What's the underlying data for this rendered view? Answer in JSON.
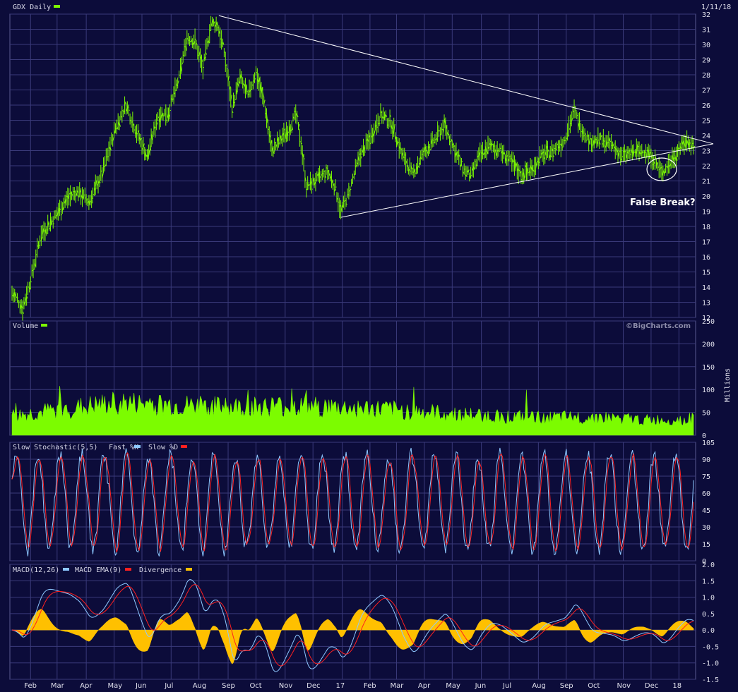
{
  "colors": {
    "background": "#0c0c3a",
    "grid": "#3a3a7a",
    "border": "#5a5a90",
    "price": "#7cfc00",
    "volume": "#7cfc00",
    "stoch_fast": "#8ec8ff",
    "stoch_slow": "#ff2020",
    "macd": "#8ec8ff",
    "macd_ema": "#ff2020",
    "divergence": "#ffc000",
    "trendline": "#ffffff"
  },
  "header": {
    "symbol_label": "GDX Daily",
    "date": "1/11/18",
    "credit": "©BigCharts.com"
  },
  "annotation": {
    "text": "False Break?"
  },
  "chart_data": [
    {
      "type": "bar",
      "name": "price",
      "title": "GDX Daily",
      "ylim": [
        12,
        32
      ],
      "yticks": [
        32,
        31,
        30,
        29,
        28,
        27,
        26,
        25,
        24,
        23,
        22,
        21,
        20,
        19,
        18,
        17,
        16,
        15,
        14,
        13,
        12
      ],
      "x_labels": [
        "Feb",
        "Mar",
        "Apr",
        "May",
        "Jun",
        "Jul",
        "Aug",
        "Sep",
        "Oct",
        "Nov",
        "Dec",
        "17",
        "Feb",
        "Mar",
        "Apr",
        "May",
        "Jun",
        "Jul",
        "Aug",
        "Sep",
        "Oct",
        "Nov",
        "Dec",
        "18"
      ],
      "anchors": [
        {
          "t": 0,
          "v": 13.6
        },
        {
          "t": 4,
          "v": 13.2
        },
        {
          "t": 8,
          "v": 12.6
        },
        {
          "t": 14,
          "v": 14.5
        },
        {
          "t": 22,
          "v": 17.5
        },
        {
          "t": 32,
          "v": 18.6
        },
        {
          "t": 42,
          "v": 19.9
        },
        {
          "t": 50,
          "v": 20.3
        },
        {
          "t": 58,
          "v": 19.6
        },
        {
          "t": 68,
          "v": 21.5
        },
        {
          "t": 78,
          "v": 24.5
        },
        {
          "t": 86,
          "v": 26.0
        },
        {
          "t": 94,
          "v": 24.2
        },
        {
          "t": 102,
          "v": 22.6
        },
        {
          "t": 110,
          "v": 25.3
        },
        {
          "t": 118,
          "v": 25.5
        },
        {
          "t": 126,
          "v": 27.8
        },
        {
          "t": 132,
          "v": 30.5
        },
        {
          "t": 138,
          "v": 30.2
        },
        {
          "t": 144,
          "v": 28.4
        },
        {
          "t": 150,
          "v": 31.4
        },
        {
          "t": 155,
          "v": 31.3
        },
        {
          "t": 160,
          "v": 29.5
        },
        {
          "t": 166,
          "v": 25.8
        },
        {
          "t": 172,
          "v": 27.8
        },
        {
          "t": 178,
          "v": 26.6
        },
        {
          "t": 184,
          "v": 28.2
        },
        {
          "t": 190,
          "v": 26.2
        },
        {
          "t": 196,
          "v": 23.0
        },
        {
          "t": 204,
          "v": 23.9
        },
        {
          "t": 210,
          "v": 24.6
        },
        {
          "t": 214,
          "v": 25.4
        },
        {
          "t": 218,
          "v": 23.5
        },
        {
          "t": 222,
          "v": 20.6
        },
        {
          "t": 230,
          "v": 21.1
        },
        {
          "t": 238,
          "v": 21.6
        },
        {
          "t": 244,
          "v": 20.5
        },
        {
          "t": 248,
          "v": 19.0
        },
        {
          "t": 254,
          "v": 20.2
        },
        {
          "t": 262,
          "v": 22.6
        },
        {
          "t": 270,
          "v": 23.8
        },
        {
          "t": 278,
          "v": 25.4
        },
        {
          "t": 286,
          "v": 24.8
        },
        {
          "t": 294,
          "v": 22.8
        },
        {
          "t": 302,
          "v": 21.4
        },
        {
          "t": 310,
          "v": 22.8
        },
        {
          "t": 318,
          "v": 23.6
        },
        {
          "t": 326,
          "v": 24.7
        },
        {
          "t": 332,
          "v": 23.4
        },
        {
          "t": 340,
          "v": 21.8
        },
        {
          "t": 346,
          "v": 21.3
        },
        {
          "t": 352,
          "v": 22.6
        },
        {
          "t": 360,
          "v": 23.3
        },
        {
          "t": 368,
          "v": 23.0
        },
        {
          "t": 376,
          "v": 22.3
        },
        {
          "t": 384,
          "v": 21.4
        },
        {
          "t": 392,
          "v": 21.8
        },
        {
          "t": 400,
          "v": 22.7
        },
        {
          "t": 408,
          "v": 23.0
        },
        {
          "t": 416,
          "v": 23.6
        },
        {
          "t": 424,
          "v": 25.6
        },
        {
          "t": 430,
          "v": 24.4
        },
        {
          "t": 436,
          "v": 23.6
        },
        {
          "t": 444,
          "v": 23.7
        },
        {
          "t": 452,
          "v": 23.4
        },
        {
          "t": 460,
          "v": 22.6
        },
        {
          "t": 468,
          "v": 22.9
        },
        {
          "t": 476,
          "v": 23.0
        },
        {
          "t": 482,
          "v": 22.7
        },
        {
          "t": 490,
          "v": 21.5
        },
        {
          "t": 496,
          "v": 22.2
        },
        {
          "t": 502,
          "v": 23.0
        },
        {
          "t": 508,
          "v": 23.6
        },
        {
          "t": 514,
          "v": 23.4
        }
      ],
      "annotations": [
        "False Break?"
      ]
    },
    {
      "type": "area",
      "name": "volume",
      "title": "Volume",
      "ylabel": "Millions",
      "ylim": [
        0,
        250
      ],
      "yticks": [
        250,
        200,
        150,
        100,
        50,
        0
      ],
      "anchors": [
        {
          "t": 0,
          "v": 45
        },
        {
          "t": 40,
          "v": 60
        },
        {
          "t": 80,
          "v": 75
        },
        {
          "t": 120,
          "v": 70
        },
        {
          "t": 160,
          "v": 65
        },
        {
          "t": 200,
          "v": 68
        },
        {
          "t": 240,
          "v": 65
        },
        {
          "t": 280,
          "v": 60
        },
        {
          "t": 320,
          "v": 52
        },
        {
          "t": 360,
          "v": 45
        },
        {
          "t": 400,
          "v": 40
        },
        {
          "t": 440,
          "v": 42
        },
        {
          "t": 480,
          "v": 35
        },
        {
          "t": 514,
          "v": 38
        }
      ]
    },
    {
      "type": "line",
      "name": "slow-stochastic",
      "title": "Slow Stochastic(5,5)",
      "series": [
        {
          "name": "Fast %K"
        },
        {
          "name": "Slow %D"
        }
      ],
      "ylim": [
        0,
        105
      ],
      "yticks": [
        105,
        90,
        75,
        60,
        45,
        30,
        15,
        0
      ]
    },
    {
      "type": "line",
      "name": "macd",
      "title": "MACD(12,26)",
      "series": [
        {
          "name": "MACD EMA(9)"
        },
        {
          "name": "Divergence"
        }
      ],
      "ylim": [
        -1.5,
        2.0
      ],
      "yticks": [
        "2.0",
        "1.5",
        "1.0",
        "0.5",
        "0.0",
        "-0.5",
        "-1.0",
        "-1.5"
      ]
    }
  ]
}
